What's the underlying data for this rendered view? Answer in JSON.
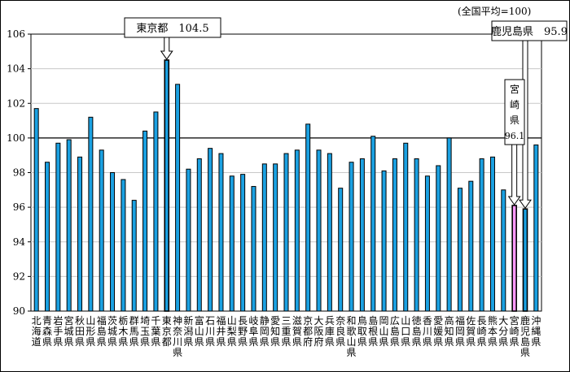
{
  "chart_data": {
    "type": "bar",
    "note": "(全国平均=100)",
    "categories": [
      "北海道",
      "青森県",
      "岩手県",
      "宮城県",
      "秋田県",
      "山形県",
      "福島県",
      "茨城県",
      "栃木県",
      "群馬県",
      "埼玉県",
      "千葉県",
      "東京都",
      "神奈川県",
      "新潟県",
      "富山県",
      "石川県",
      "福井県",
      "山梨県",
      "長野県",
      "岐阜県",
      "静岡県",
      "愛知県",
      "三重県",
      "滋賀県",
      "京都府",
      "大阪府",
      "兵庫県",
      "奈良県",
      "和歌山県",
      "鳥取県",
      "島根県",
      "岡山県",
      "広島県",
      "山口県",
      "徳島県",
      "香川県",
      "愛媛県",
      "高知県",
      "福岡県",
      "佐賀県",
      "長崎県",
      "熊本県",
      "大分県",
      "宮崎県",
      "鹿児島県",
      "沖縄県"
    ],
    "values": [
      101.7,
      98.6,
      99.7,
      99.9,
      98.9,
      101.2,
      99.3,
      98.0,
      97.6,
      96.4,
      100.4,
      101.5,
      104.5,
      103.1,
      98.2,
      98.8,
      99.4,
      99.1,
      97.8,
      97.9,
      97.2,
      98.5,
      98.5,
      99.1,
      99.3,
      100.8,
      99.3,
      99.1,
      97.1,
      98.6,
      98.8,
      100.1,
      98.1,
      98.8,
      99.7,
      98.8,
      97.8,
      98.4,
      100.0,
      97.1,
      97.5,
      98.8,
      98.9,
      97.0,
      96.1,
      95.9,
      99.6
    ],
    "ylim": [
      90,
      106
    ],
    "yticks": [
      90,
      92,
      94,
      96,
      98,
      100,
      102,
      104,
      106
    ],
    "grid": true,
    "colors": {
      "bar": "#1BA1E2",
      "bar_highlight_tokyo": "#1BA1E2",
      "bar_highlight_miyazaki": "#FF99FF",
      "bar_highlight_kagoshima": "#1BA1E2",
      "grid": "#C8C8C8",
      "reference_line": "#000000"
    },
    "callouts": [
      {
        "label": "東京都　104.5",
        "index": 12
      },
      {
        "label": "鹿児島県　95.9",
        "index": 45
      },
      {
        "label": "宮崎県96.1",
        "index": 44
      }
    ]
  }
}
